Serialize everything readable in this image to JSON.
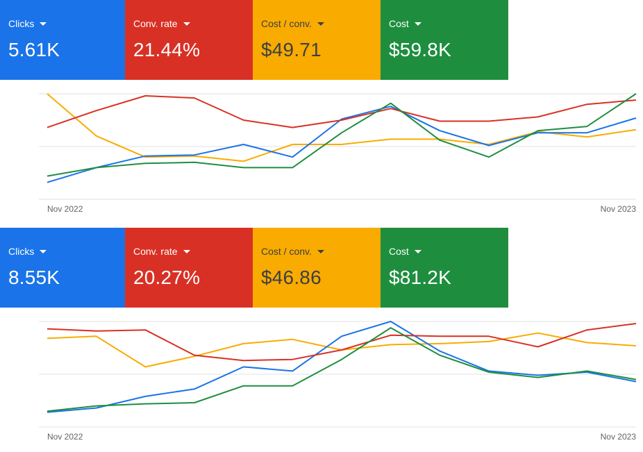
{
  "colors": {
    "clicks": "#1a73e8",
    "conv_rate": "#d93025",
    "cost_per_conv": "#f9ab00",
    "cost": "#1e8e3e",
    "dark_text": "#3c4043",
    "axis_text": "#5f6368",
    "grid": "#e0e0e0"
  },
  "panels": [
    {
      "cards": [
        {
          "label": "Clicks",
          "value": "5.61K",
          "color_key": "clicks",
          "text": "light"
        },
        {
          "label": "Conv. rate",
          "value": "21.44%",
          "color_key": "conv_rate",
          "text": "light"
        },
        {
          "label": "Cost / conv.",
          "value": "$49.71",
          "color_key": "cost_per_conv",
          "text": "dark"
        },
        {
          "label": "Cost",
          "value": "$59.8K",
          "color_key": "cost",
          "text": "light"
        }
      ],
      "x_start_label": "Nov 2022",
      "x_end_label": "Nov 2023"
    },
    {
      "cards": [
        {
          "label": "Clicks",
          "value": "8.55K",
          "color_key": "clicks",
          "text": "light"
        },
        {
          "label": "Conv. rate",
          "value": "20.27%",
          "color_key": "conv_rate",
          "text": "light"
        },
        {
          "label": "Cost / conv.",
          "value": "$46.86",
          "color_key": "cost_per_conv",
          "text": "dark"
        },
        {
          "label": "Cost",
          "value": "$81.2K",
          "color_key": "cost",
          "text": "light"
        }
      ],
      "x_start_label": "Nov 2022",
      "x_end_label": "Nov 2023"
    }
  ],
  "chart_data": [
    {
      "type": "line",
      "xlabel": "",
      "ylabel": "",
      "x_tick_labels": [
        "Nov 2022",
        "Nov 2023"
      ],
      "y_scale": "normalized 0-1 per series (no y-axis labels shown)",
      "grid": "horizontal",
      "series": [
        {
          "color_key": "clicks",
          "values": [
            0.16,
            0.3,
            0.41,
            0.42,
            0.52,
            0.4,
            0.76,
            0.88,
            0.65,
            0.51,
            0.63,
            0.63,
            0.77
          ]
        },
        {
          "color_key": "conv_rate",
          "values": [
            0.68,
            0.84,
            0.98,
            0.96,
            0.75,
            0.68,
            0.75,
            0.86,
            0.74,
            0.74,
            0.78,
            0.9,
            0.94
          ]
        },
        {
          "color_key": "cost_per_conv",
          "values": [
            1.0,
            0.6,
            0.4,
            0.41,
            0.36,
            0.52,
            0.52,
            0.57,
            0.57,
            0.52,
            0.64,
            0.59,
            0.66
          ]
        },
        {
          "color_key": "cost",
          "values": [
            0.22,
            0.3,
            0.34,
            0.35,
            0.3,
            0.3,
            0.63,
            0.91,
            0.56,
            0.4,
            0.65,
            0.69,
            1.0
          ]
        }
      ]
    },
    {
      "type": "line",
      "xlabel": "",
      "ylabel": "",
      "x_tick_labels": [
        "Nov 2022",
        "Nov 2023"
      ],
      "y_scale": "normalized 0-1 per series (no y-axis labels shown)",
      "grid": "horizontal",
      "series": [
        {
          "color_key": "clicks",
          "values": [
            0.14,
            0.18,
            0.29,
            0.36,
            0.57,
            0.53,
            0.86,
            1.0,
            0.72,
            0.53,
            0.49,
            0.52,
            0.43
          ]
        },
        {
          "color_key": "conv_rate",
          "values": [
            0.93,
            0.91,
            0.92,
            0.68,
            0.63,
            0.64,
            0.73,
            0.87,
            0.86,
            0.86,
            0.76,
            0.92,
            0.98
          ]
        },
        {
          "color_key": "cost_per_conv",
          "values": [
            0.84,
            0.86,
            0.57,
            0.67,
            0.79,
            0.83,
            0.73,
            0.78,
            0.79,
            0.81,
            0.89,
            0.8,
            0.77
          ]
        },
        {
          "color_key": "cost",
          "values": [
            0.15,
            0.2,
            0.22,
            0.23,
            0.39,
            0.39,
            0.64,
            0.94,
            0.68,
            0.52,
            0.47,
            0.53,
            0.45
          ]
        }
      ]
    }
  ]
}
